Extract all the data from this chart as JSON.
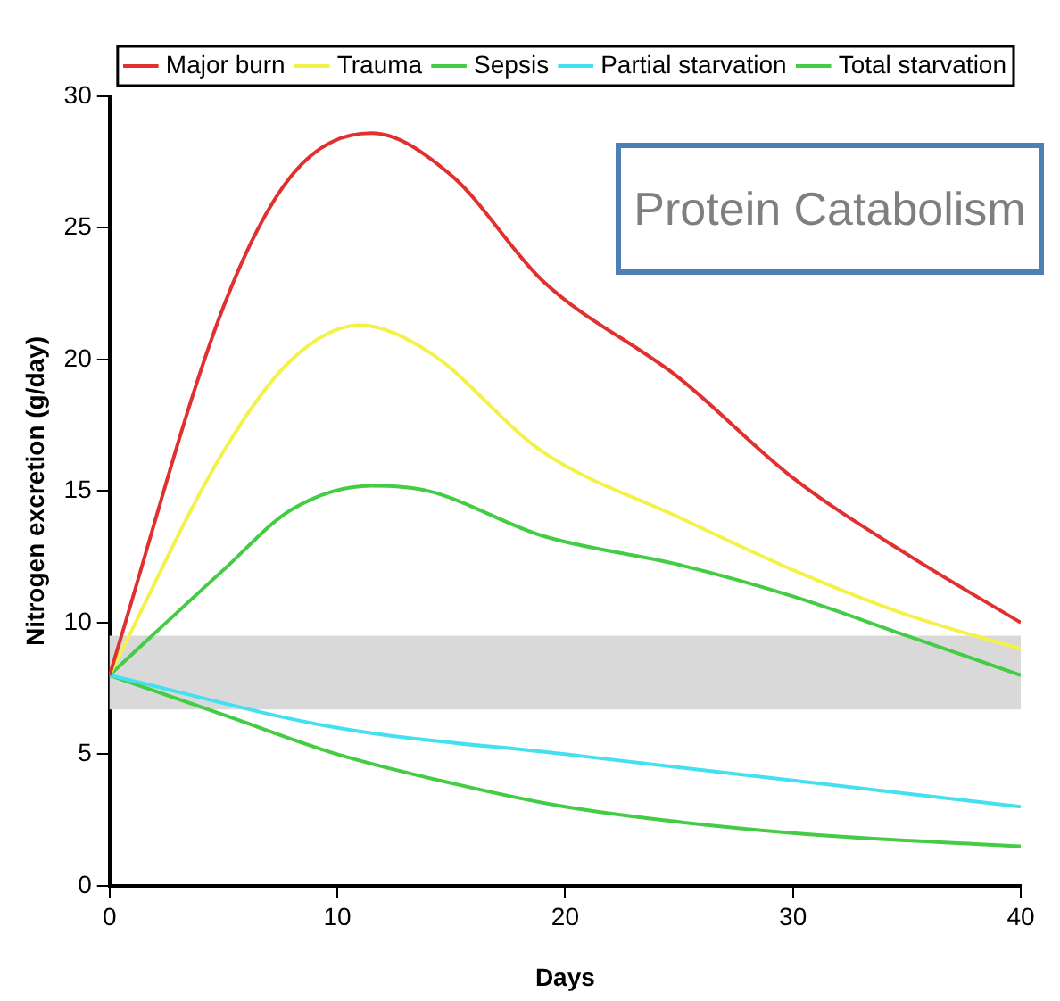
{
  "chart_data": {
    "type": "line",
    "xlabel": "Days",
    "ylabel": "Nitrogen excretion (g/day)",
    "annotations": [
      "Protein Catabolism"
    ],
    "xlim": [
      0,
      40
    ],
    "ylim": [
      0,
      30
    ],
    "xticks": [
      0,
      10,
      20,
      30,
      40
    ],
    "yticks": [
      0,
      5,
      10,
      15,
      20,
      25,
      30
    ],
    "grid": false,
    "legend": "top",
    "marker": "none",
    "line_style": "solid",
    "bands": [
      {
        "axis": "y",
        "from": 6.7,
        "to": 9.5,
        "color": "#d9d9d9"
      }
    ],
    "series": [
      {
        "name": "Major burn",
        "color": "#e03030",
        "x": [
          0,
          5,
          8,
          11.5,
          15,
          19,
          25,
          30,
          35,
          40
        ],
        "values": [
          8,
          22,
          27,
          28.6,
          27,
          23,
          19.3,
          15.5,
          12.6,
          10
        ]
      },
      {
        "name": "Trauma",
        "color": "#f2f24a",
        "x": [
          0,
          5,
          8,
          11,
          14,
          19,
          25,
          30,
          35,
          40
        ],
        "values": [
          8,
          16.5,
          20,
          21.3,
          20.3,
          16.5,
          14,
          12,
          10.3,
          9
        ]
      },
      {
        "name": "Sepsis",
        "color": "#44cc44",
        "x": [
          0,
          5,
          8,
          11.5,
          14,
          19,
          25,
          30,
          35,
          40
        ],
        "values": [
          8,
          12,
          14.3,
          15.2,
          15,
          13.3,
          12.2,
          11,
          9.5,
          8
        ]
      },
      {
        "name": "Partial starvation",
        "color": "#44e0f0",
        "x": [
          0,
          10,
          20,
          30,
          40
        ],
        "values": [
          8,
          6,
          5,
          4,
          3
        ]
      },
      {
        "name": "Total starvation",
        "color": "#44cc44",
        "x": [
          0,
          5,
          10,
          15,
          20,
          30,
          40
        ],
        "values": [
          8,
          6.5,
          5,
          3.9,
          3,
          2,
          1.5
        ]
      }
    ]
  }
}
